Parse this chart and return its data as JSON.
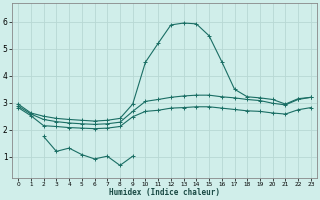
{
  "xlabel": "Humidex (Indice chaleur)",
  "bg_color": "#d0eeea",
  "grid_color": "#b8d8d4",
  "line_color": "#1a6e64",
  "x_ticks": [
    0,
    1,
    2,
    3,
    4,
    5,
    6,
    7,
    8,
    9,
    10,
    11,
    12,
    13,
    14,
    15,
    16,
    17,
    18,
    19,
    20,
    21,
    22,
    23
  ],
  "y_ticks": [
    1,
    2,
    3,
    4,
    5,
    6
  ],
  "ylim": [
    0.2,
    6.7
  ],
  "xlim": [
    -0.5,
    23.5
  ],
  "series": [
    {
      "x": [
        0,
        1,
        2,
        3,
        4,
        5,
        6,
        7,
        8,
        9,
        10,
        11,
        12,
        13,
        14,
        15,
        16,
        17,
        18,
        19,
        20,
        21,
        22,
        23
      ],
      "y": [
        2.95,
        2.62,
        2.5,
        2.42,
        2.38,
        2.35,
        2.32,
        2.35,
        2.42,
        2.95,
        4.5,
        5.2,
        5.88,
        5.95,
        5.92,
        5.48,
        4.52,
        3.5,
        3.22,
        3.18,
        3.12,
        2.95,
        3.15,
        3.2
      ]
    },
    {
      "x": [
        0,
        1,
        2,
        3,
        4,
        5,
        6,
        7,
        8,
        9,
        10,
        11,
        12,
        13,
        14,
        15,
        16,
        17,
        18,
        19,
        20,
        21,
        22,
        23
      ],
      "y": [
        2.88,
        2.58,
        2.38,
        2.3,
        2.25,
        2.22,
        2.2,
        2.22,
        2.28,
        2.68,
        3.05,
        3.12,
        3.2,
        3.25,
        3.28,
        3.28,
        3.22,
        3.18,
        3.12,
        3.08,
        2.98,
        2.92,
        3.12,
        3.2
      ]
    },
    {
      "x": [
        0,
        1,
        2,
        3,
        4,
        5,
        6,
        7,
        8,
        9,
        10,
        11,
        12,
        13,
        14,
        15,
        16,
        17,
        18,
        19,
        20,
        21,
        22,
        23
      ],
      "y": [
        2.82,
        2.52,
        2.15,
        2.12,
        2.08,
        2.06,
        2.04,
        2.06,
        2.12,
        2.48,
        2.68,
        2.72,
        2.8,
        2.82,
        2.85,
        2.85,
        2.8,
        2.75,
        2.7,
        2.68,
        2.62,
        2.58,
        2.74,
        2.82
      ]
    },
    {
      "x": [
        2,
        3,
        4,
        5,
        6,
        7,
        8,
        9
      ],
      "y": [
        1.75,
        1.2,
        1.32,
        1.08,
        0.92,
        1.02,
        0.68,
        1.02
      ]
    }
  ]
}
